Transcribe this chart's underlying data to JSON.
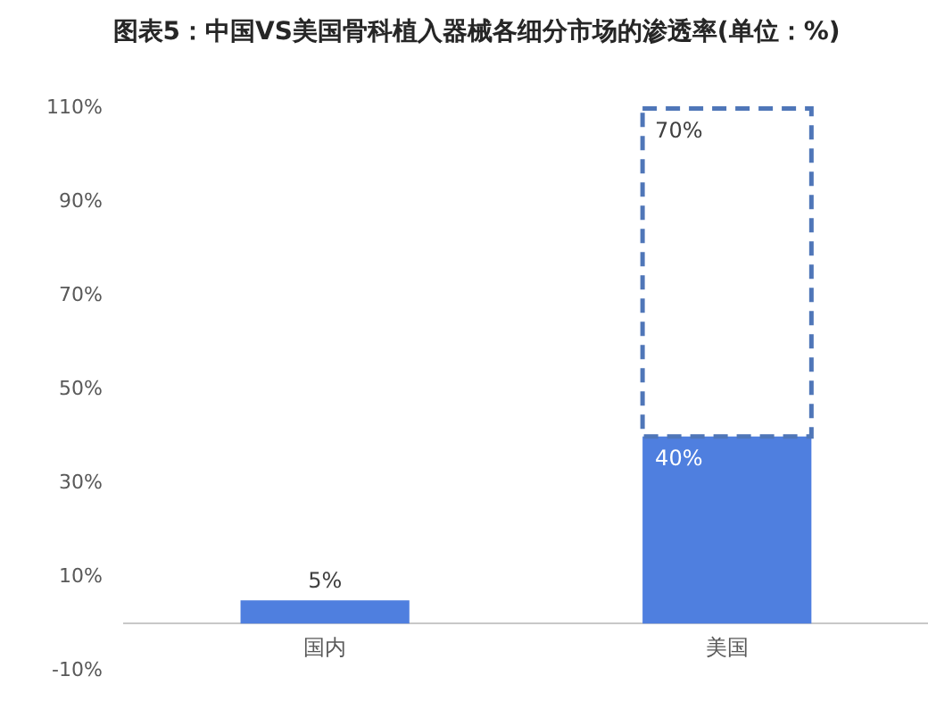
{
  "chart_data": {
    "type": "bar",
    "title": "图表5：中国VS美国骨科植入器械各细分市场的渗透率(单位：%)",
    "categories": [
      "国内",
      "美国"
    ],
    "stacked": true,
    "series": [
      {
        "color": "#4f7fdf",
        "values": [
          5,
          40
        ],
        "value_labels": [
          "5%",
          "40%"
        ]
      },
      {
        "color": "#4f76b8",
        "values": [
          null,
          70
        ],
        "value_labels": [
          null,
          "70%"
        ],
        "line_style": "dashed"
      }
    ],
    "ylim": [
      -10,
      110
    ],
    "yticks": [
      {
        "value": -10,
        "label": "-10%"
      },
      {
        "value": 10,
        "label": "10%"
      },
      {
        "value": 30,
        "label": "30%"
      },
      {
        "value": 50,
        "label": "50%"
      },
      {
        "value": 70,
        "label": "70%"
      },
      {
        "value": 90,
        "label": "90%"
      },
      {
        "value": 110,
        "label": "110%"
      }
    ],
    "grid": false,
    "legend": false
  }
}
